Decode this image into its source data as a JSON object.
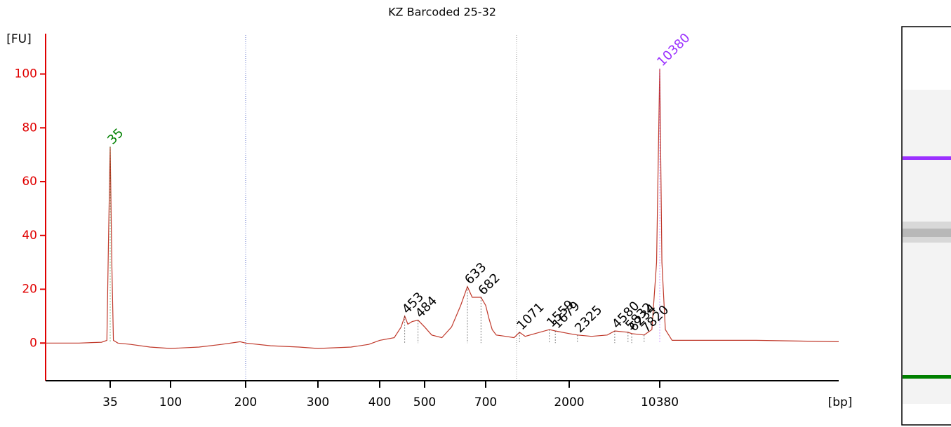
{
  "chart_data": {
    "type": "line",
    "title": "KZ Barcoded 25-32",
    "ylabel": "[FU]",
    "xlabel": "[bp]",
    "axis_color": "#e00000",
    "xlim": [
      11,
      270000
    ],
    "xticks": [
      35,
      100,
      200,
      300,
      400,
      500,
      700,
      2000,
      10380
    ],
    "ylim": [
      -14,
      115
    ],
    "yticks": [
      0,
      20,
      40,
      60,
      80,
      100
    ],
    "series": [
      {
        "color": "#c0392b",
        "x": [
          11,
          20,
          30,
          33,
          34,
          35,
          36,
          37,
          40,
          50,
          70,
          100,
          130,
          160,
          190,
          200,
          230,
          270,
          300,
          350,
          380,
          400,
          430,
          445,
          453,
          460,
          470,
          484,
          500,
          520,
          550,
          580,
          610,
          633,
          650,
          682,
          700,
          730,
          760,
          800,
          900,
          1000,
          1071,
          1150,
          1300,
          1559,
          1679,
          2000,
          2325,
          3000,
          4000,
          4580,
          5832,
          6234,
          7820,
          9000,
          9800,
          10380,
          10800,
          11500,
          13000,
          20000,
          60000,
          270000
        ],
        "values": [
          0,
          0,
          0.3,
          1,
          40,
          73,
          30,
          1,
          0,
          -0.5,
          -1.5,
          -2,
          -1.5,
          -0.5,
          0.5,
          0,
          -1,
          -1.5,
          -2,
          -1.5,
          -0.5,
          1,
          2,
          6,
          10,
          7,
          8,
          8.5,
          6,
          3,
          2,
          6,
          14,
          21,
          17,
          17,
          14,
          9,
          5,
          3,
          2.5,
          2,
          4,
          2.5,
          3.5,
          5,
          4.5,
          3.5,
          3,
          2.5,
          3,
          4.5,
          4,
          3.5,
          3,
          5,
          30,
          102,
          30,
          5,
          1,
          1,
          1,
          0.5
        ]
      }
    ],
    "peaks": [
      {
        "x": 35,
        "y": 73,
        "color": "#008000"
      },
      {
        "x": 453,
        "y": 10,
        "color": "#000000"
      },
      {
        "x": 484,
        "y": 8.5,
        "color": "#000000"
      },
      {
        "x": 633,
        "y": 21,
        "color": "#000000"
      },
      {
        "x": 682,
        "y": 17,
        "color": "#000000"
      },
      {
        "x": 1071,
        "y": 4,
        "color": "#000000"
      },
      {
        "x": 1559,
        "y": 5,
        "color": "#000000"
      },
      {
        "x": 1679,
        "y": 4.5,
        "color": "#000000"
      },
      {
        "x": 2325,
        "y": 3,
        "color": "#000000"
      },
      {
        "x": 4580,
        "y": 4.5,
        "color": "#000000"
      },
      {
        "x": 5832,
        "y": 4,
        "color": "#000000"
      },
      {
        "x": 6234,
        "y": 3.5,
        "color": "#000000"
      },
      {
        "x": 7820,
        "y": 3,
        "color": "#000000"
      },
      {
        "x": 10380,
        "y": 102,
        "color": "#9b30ff"
      }
    ]
  }
}
